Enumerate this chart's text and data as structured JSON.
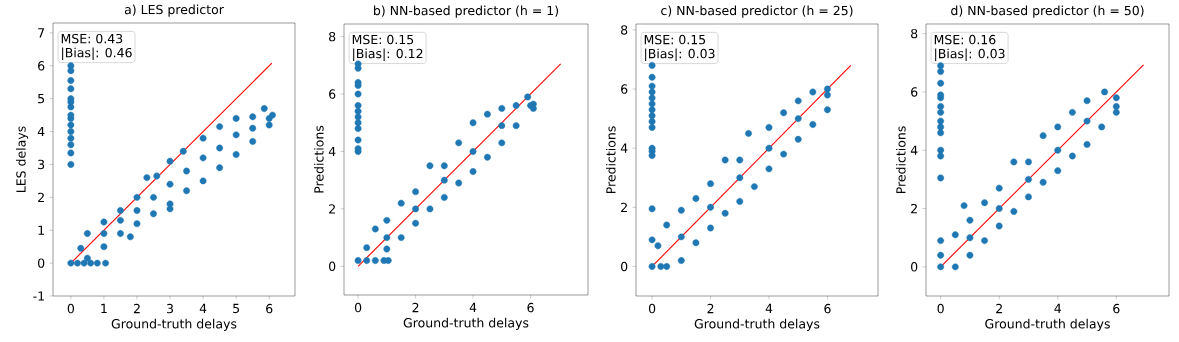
{
  "chart_data": [
    {
      "type": "scatter",
      "title": "a) LES predictor",
      "xlabel": "Ground-truth delays",
      "ylabel": "LES delays",
      "xlim": [
        -0.54,
        6.78
      ],
      "ylim": [
        -1,
        7.3
      ],
      "xticks": [
        0,
        1,
        2,
        3,
        4,
        5,
        6
      ],
      "yticks": [
        -1,
        0,
        1,
        2,
        3,
        4,
        5,
        6,
        7
      ],
      "annotations": [
        "MSE:  0.43",
        "|Bias|: 0.46"
      ],
      "series": [
        {
          "marker": "circle",
          "color": "#1f77b4",
          "x": [
            0,
            0,
            0,
            0,
            0,
            0,
            0,
            0,
            0,
            0,
            0,
            0,
            0,
            0,
            0,
            0,
            0.2,
            0.4,
            0.6,
            0.8,
            1.05,
            0.5,
            1,
            1.5,
            2,
            2.5,
            3,
            3.5,
            4,
            4.5,
            5,
            5.5,
            6,
            0.3,
            0.5,
            1,
            1.5,
            2,
            2.3,
            2.6,
            3,
            3.4,
            4,
            4.5,
            5,
            5.5,
            5.85,
            6.1,
            1,
            1.5,
            2,
            2.5,
            3,
            3.5,
            4,
            4.5,
            5,
            5.5,
            6,
            1.8,
            3
          ],
          "values": [
            3.0,
            3.35,
            3.6,
            3.8,
            4.0,
            4.2,
            4.4,
            4.5,
            4.75,
            4.9,
            5.0,
            5.3,
            5.55,
            5.85,
            6.0,
            0,
            0,
            0,
            0,
            0,
            0,
            0.15,
            0.5,
            0.9,
            1.2,
            1.5,
            1.8,
            2.2,
            2.5,
            2.9,
            3.3,
            3.7,
            4.2,
            0.45,
            0.9,
            1.25,
            1.6,
            2.0,
            2.6,
            2.65,
            3.1,
            3.4,
            3.8,
            4.15,
            4.4,
            4.45,
            4.7,
            4.5,
            0.9,
            1.3,
            1.6,
            2.0,
            2.4,
            2.8,
            3.2,
            3.5,
            3.9,
            4.1,
            4.4,
            0.8,
            1.65
          ]
        },
        {
          "type": "line",
          "marker": "none",
          "color": "#ff0000",
          "x": [
            0,
            6.08
          ],
          "values": [
            0,
            6.08
          ]
        }
      ]
    },
    {
      "type": "scatter",
      "title": "b) NN-based predictor (h = 1)",
      "xlabel": "Ground-truth delays",
      "ylabel": "Predictions",
      "xlim": [
        -0.49,
        8.0
      ],
      "ylim": [
        -1,
        8.44
      ],
      "xticks": [
        0,
        2,
        4,
        6
      ],
      "yticks": [
        0,
        2,
        4,
        6,
        8
      ],
      "annotations": [
        "MSE:  0.15",
        "|Bias|: 0.12"
      ],
      "series": [
        {
          "marker": "circle",
          "color": "#1f77b4",
          "x": [
            0,
            0,
            0,
            0,
            0,
            0,
            0,
            0,
            0,
            0,
            0,
            0,
            0,
            0,
            0.3,
            0.6,
            0.9,
            1.05,
            1,
            1.5,
            2,
            2.5,
            3,
            3.5,
            4,
            4.5,
            5,
            5.5,
            6.1,
            0.3,
            0.6,
            1,
            1.5,
            2,
            2.5,
            3,
            3.5,
            4,
            4.5,
            5,
            5.5,
            5.9,
            6.1,
            1,
            2,
            3,
            4,
            5,
            6
          ],
          "values": [
            4.0,
            4.1,
            4.4,
            4.8,
            5.0,
            5.2,
            5.4,
            5.6,
            6.0,
            6.3,
            6.4,
            6.9,
            7.05,
            0.2,
            0.2,
            0.2,
            0.2,
            0.2,
            0.6,
            1.0,
            1.5,
            2.0,
            2.4,
            2.9,
            3.3,
            3.8,
            4.3,
            4.9,
            5.5,
            0.65,
            1.3,
            1.6,
            2.2,
            2.6,
            3.5,
            3.5,
            4.3,
            5.0,
            5.3,
            5.5,
            5.6,
            5.9,
            5.65,
            1.0,
            2.0,
            3.0,
            4.0,
            4.9,
            5.6
          ]
        },
        {
          "type": "line",
          "marker": "none",
          "color": "#ff0000",
          "x": [
            0,
            7.05
          ],
          "values": [
            0,
            7.05
          ]
        }
      ]
    },
    {
      "type": "scatter",
      "title": "c) NN-based predictor (h = 25)",
      "xlabel": "Ground-truth delays",
      "ylabel": "Predictions",
      "xlim": [
        -0.55,
        7.73
      ],
      "ylim": [
        -1,
        8.2
      ],
      "xticks": [
        0,
        2,
        4,
        6
      ],
      "yticks": [
        0,
        2,
        4,
        6,
        8
      ],
      "annotations": [
        "MSE:  0.15",
        "|Bias|: 0.03"
      ],
      "series": [
        {
          "marker": "circle",
          "color": "#1f77b4",
          "x": [
            0,
            0,
            0,
            0,
            0,
            0,
            0,
            0,
            0,
            0,
            0,
            0,
            0,
            0,
            0,
            0,
            0.3,
            0.5,
            1,
            1.5,
            2,
            2.5,
            3,
            3.5,
            4,
            4.5,
            5,
            5.5,
            6,
            0.2,
            0.5,
            1,
            1.5,
            2,
            2.5,
            3,
            3.3,
            4,
            4.5,
            5,
            5.5,
            6,
            1,
            2,
            3,
            4,
            5,
            6
          ],
          "values": [
            0.0,
            0.9,
            1.95,
            3.75,
            3.9,
            4.0,
            4.7,
            4.9,
            5.1,
            5.3,
            5.5,
            5.7,
            5.9,
            6.1,
            6.4,
            6.8,
            0,
            0,
            0.2,
            0.8,
            1.3,
            1.8,
            2.2,
            2.7,
            3.3,
            3.8,
            4.3,
            4.8,
            5.3,
            0.7,
            1.4,
            1.9,
            2.3,
            2.8,
            3.6,
            3.6,
            4.5,
            4.7,
            5.2,
            5.6,
            5.9,
            6.0,
            1.0,
            2.0,
            3.0,
            4.0,
            5.0,
            5.8
          ]
        },
        {
          "type": "line",
          "marker": "none",
          "color": "#ff0000",
          "x": [
            0,
            6.8
          ],
          "values": [
            0,
            6.8
          ]
        }
      ]
    },
    {
      "type": "scatter",
      "title": "d) NN-based predictor (h = 50)",
      "xlabel": "Ground-truth delays",
      "ylabel": "Predictions",
      "xlim": [
        -0.5,
        7.8
      ],
      "ylim": [
        -1,
        8.33
      ],
      "xticks": [
        0,
        2,
        4,
        6
      ],
      "yticks": [
        0,
        2,
        4,
        6,
        8
      ],
      "annotations": [
        "MSE:  0.16",
        "|Bias|: 0.03"
      ],
      "series": [
        {
          "marker": "circle",
          "color": "#1f77b4",
          "x": [
            0,
            0,
            0,
            0,
            0,
            0,
            0,
            0,
            0,
            0,
            0,
            0,
            0,
            0,
            0,
            0,
            0.5,
            1,
            1.5,
            2,
            2.5,
            3,
            3.5,
            4,
            4.5,
            5,
            5.5,
            6,
            0.5,
            0.8,
            1,
            1.5,
            2,
            2.5,
            3,
            3.5,
            4,
            4.5,
            5,
            5.6,
            6,
            1,
            2,
            3,
            4,
            5,
            6
          ],
          "values": [
            0.0,
            0.9,
            3.05,
            3.8,
            4.0,
            4.6,
            4.8,
            5.0,
            5.3,
            5.5,
            5.8,
            5.9,
            6.3,
            6.7,
            6.9,
            0.4,
            0,
            0.4,
            0.9,
            1.4,
            1.9,
            2.4,
            2.9,
            3.3,
            3.8,
            4.2,
            4.8,
            5.3,
            1.1,
            2.1,
            1.6,
            2.2,
            2.7,
            3.6,
            3.6,
            4.5,
            4.8,
            5.3,
            5.7,
            6.0,
            5.8,
            1.0,
            2.0,
            3.0,
            4.0,
            5.0,
            5.5
          ]
        },
        {
          "type": "line",
          "marker": "none",
          "color": "#ff0000",
          "x": [
            0,
            6.93
          ],
          "values": [
            0,
            6.93
          ]
        }
      ]
    }
  ]
}
